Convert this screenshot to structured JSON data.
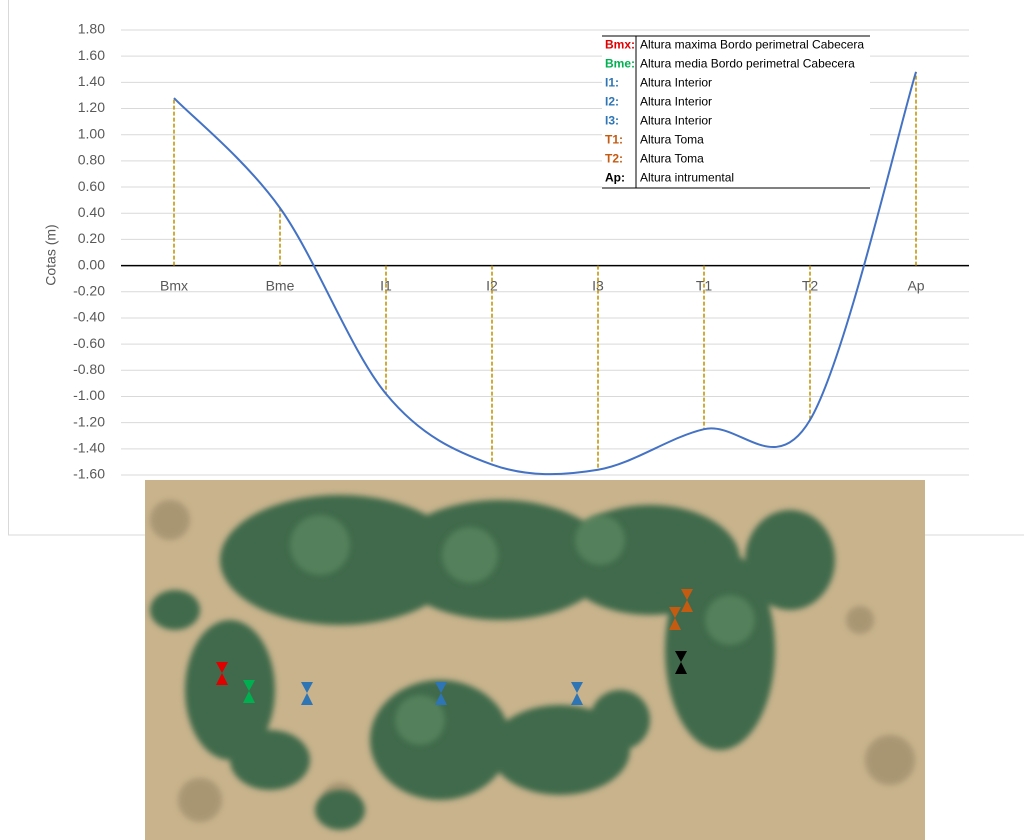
{
  "chart_data": {
    "type": "line",
    "y_label": "Cotas (m)",
    "categories": [
      "Bmx",
      "Bme",
      "I1",
      "I2",
      "I3",
      "T1",
      "T2",
      "Ap"
    ],
    "values": [
      1.28,
      0.44,
      -0.98,
      -1.52,
      -1.56,
      -1.25,
      -1.18,
      1.48
    ],
    "color": "#4472c4",
    "drop_line_color": "#bf9000",
    "ylim": [
      -1.6,
      1.8
    ],
    "yticks": [
      {
        "value": -1.6,
        "label": "-1.60"
      },
      {
        "value": -1.4,
        "label": "-1.40"
      },
      {
        "value": -1.2,
        "label": "-1.20"
      },
      {
        "value": -1.0,
        "label": "-1.00"
      },
      {
        "value": -0.8,
        "label": "-0.80"
      },
      {
        "value": -0.6,
        "label": "-0.60"
      },
      {
        "value": -0.4,
        "label": "-0.40"
      },
      {
        "value": -0.2,
        "label": "-0.20"
      },
      {
        "value": 0,
        "label": "0.00"
      },
      {
        "value": 0.2,
        "label": "0.20"
      },
      {
        "value": 0.4,
        "label": "0.40"
      },
      {
        "value": 0.6,
        "label": "0.60"
      },
      {
        "value": 0.8,
        "label": "0.80"
      },
      {
        "value": 1.0,
        "label": "1.00"
      },
      {
        "value": 1.2,
        "label": "1.20"
      },
      {
        "value": 1.4,
        "label": "1.40"
      },
      {
        "value": 1.6,
        "label": "1.60"
      },
      {
        "value": 1.8,
        "label": "1.80"
      }
    ],
    "grid": true,
    "legend": [
      {
        "code": "Bmx:",
        "label": "Altura maxima Bordo perimetral Cabecera",
        "color": "#e00000"
      },
      {
        "code": "Bme:",
        "label": "Altura media Bordo perimetral Cabecera",
        "color": "#00b050"
      },
      {
        "code": "I1:",
        "label": "Altura Interior",
        "color": "#2e75b6"
      },
      {
        "code": "I2:",
        "label": "Altura Interior",
        "color": "#2e75b6"
      },
      {
        "code": "I3:",
        "label": "Altura Interior",
        "color": "#2e75b6"
      },
      {
        "code": "T1:",
        "label": "Altura Toma",
        "color": "#c55a11"
      },
      {
        "code": "T2:",
        "label": "Altura Toma",
        "color": "#c55a11"
      },
      {
        "code": "Ap:",
        "label": "Altura intrumental",
        "color": "#000000"
      }
    ]
  }
}
